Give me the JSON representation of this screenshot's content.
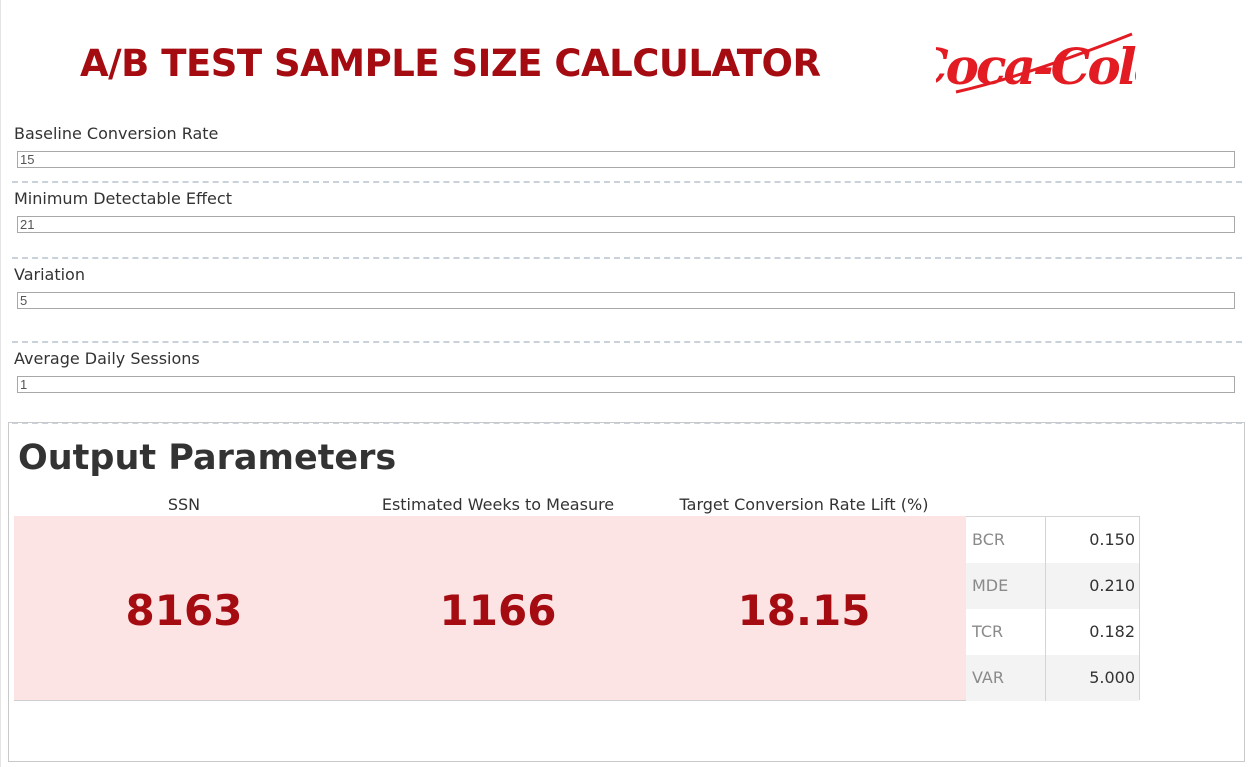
{
  "header": {
    "title": "A/B TEST SAMPLE SIZE CALCULATOR",
    "logo_text": "Coca-Cola",
    "logo_color": "#e31b23"
  },
  "inputs": [
    {
      "label": "Baseline Conversion Rate",
      "value": "15"
    },
    {
      "label": "Minimum Detectable Effect",
      "value": "21"
    },
    {
      "label": "Variation",
      "value": "5"
    },
    {
      "label": "Average Daily Sessions",
      "value": "1"
    }
  ],
  "output": {
    "title": "Output Parameters",
    "columns": [
      {
        "header": "SSN",
        "value": "8163"
      },
      {
        "header": "Estimated Weeks to Measure",
        "value": "1166"
      },
      {
        "header": "Target Conversion Rate Lift (%)",
        "value": "18.15"
      }
    ],
    "table": [
      {
        "key": "BCR",
        "value": "0.150"
      },
      {
        "key": "MDE",
        "value": "0.210"
      },
      {
        "key": "TCR",
        "value": "0.182"
      },
      {
        "key": "VAR",
        "value": "5.000"
      }
    ]
  },
  "colors": {
    "accent": "#a50c11",
    "metrics_background": "#fde4e4",
    "separator": "#c9d2db"
  }
}
